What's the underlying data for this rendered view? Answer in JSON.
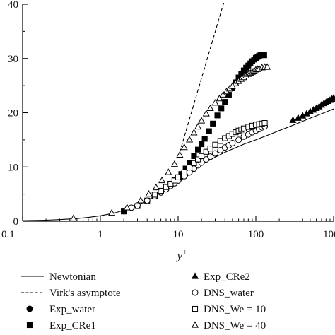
{
  "chart_data": {
    "type": "scatter",
    "xscale": "log",
    "xlabel": "y",
    "xlabel_sup": "+",
    "ylabel": "",
    "xlim": [
      0.1,
      1000
    ],
    "ylim": [
      0,
      40
    ],
    "x_ticks": [
      0.1,
      1,
      10,
      100,
      1000
    ],
    "x_tick_labels": [
      "0.1",
      "1",
      "10",
      "100",
      "1000"
    ],
    "y_ticks": [
      0,
      10,
      20,
      30,
      40
    ],
    "y_tick_labels": [
      "0",
      "10",
      "20",
      "30",
      "40"
    ],
    "grid": false,
    "legend_position": "bottom",
    "series": [
      {
        "name": "Newtonian",
        "style": "solid-line",
        "x": [
          0.1,
          0.2,
          0.3,
          0.5,
          0.7,
          1,
          1.5,
          2,
          3,
          4,
          5,
          6,
          7,
          8,
          10,
          12,
          15,
          20,
          25,
          30,
          40,
          50,
          70,
          100,
          150,
          200,
          300,
          500,
          700,
          1000
        ],
        "y": [
          0.1,
          0.2,
          0.3,
          0.5,
          0.7,
          1,
          1.5,
          2,
          2.9,
          3.8,
          4.6,
          5.3,
          6.0,
          6.6,
          7.6,
          8.4,
          9.3,
          10.4,
          11.2,
          11.8,
          12.7,
          13.3,
          14.2,
          15.0,
          16.0,
          16.7,
          17.7,
          19.0,
          19.8,
          20.7
        ]
      },
      {
        "name": "Virk's asymptote",
        "style": "dashed-line",
        "x": [
          10,
          40
        ],
        "y": [
          11.7,
          41.0
        ]
      },
      {
        "name": "Exp_water",
        "marker": "filled-circle",
        "x": [
          10.5,
          12.5,
          15.5
        ],
        "y": [
          7.9,
          8.7,
          9.7
        ]
      },
      {
        "name": "Exp_CRe1",
        "marker": "filled-square",
        "x": [
          2,
          3,
          4,
          5,
          6,
          7,
          8,
          9,
          11,
          12.5,
          14,
          16,
          18,
          20,
          22,
          25,
          28,
          32,
          36,
          40,
          45,
          50,
          55,
          60,
          65,
          70,
          75,
          80,
          85,
          90,
          95,
          100,
          105,
          110,
          115,
          120,
          125,
          128
        ],
        "y": [
          1.8,
          2.8,
          3.8,
          4.7,
          5.6,
          6.2,
          6.9,
          7.6,
          8.7,
          9.7,
          10.8,
          12.0,
          13.2,
          14.2,
          15.2,
          16.6,
          18.0,
          19.5,
          20.8,
          22.0,
          23.3,
          24.5,
          25.6,
          26.5,
          27.2,
          27.8,
          28.3,
          28.7,
          29.1,
          29.5,
          29.8,
          30.1,
          30.3,
          30.5,
          30.6,
          30.7,
          30.7,
          30.6
        ]
      },
      {
        "name": "Exp_CRe2",
        "marker": "filled-triangle",
        "x": [
          300,
          350,
          400,
          450,
          500,
          550,
          600,
          650,
          700,
          750,
          800,
          850,
          900,
          950,
          1000
        ],
        "y": [
          18.6,
          19.0,
          19.4,
          19.8,
          20.2,
          20.5,
          20.8,
          21.1,
          21.4,
          21.7,
          21.9,
          22.1,
          22.3,
          22.5,
          22.7
        ]
      },
      {
        "name": "DNS_water",
        "marker": "open-circle",
        "x": [
          2.5,
          3,
          4,
          5,
          6,
          7,
          8,
          9,
          10,
          12,
          14,
          16,
          18,
          20,
          23,
          26,
          30,
          35,
          40,
          45,
          50,
          60,
          70,
          80,
          90,
          100,
          110,
          120,
          130
        ],
        "y": [
          2.5,
          2.9,
          3.8,
          4.6,
          5.3,
          5.9,
          6.5,
          7.0,
          7.5,
          8.3,
          9.0,
          9.7,
          10.3,
          10.8,
          11.4,
          11.9,
          12.5,
          13.1,
          13.6,
          14.0,
          14.4,
          15.0,
          15.6,
          16.0,
          16.4,
          16.7,
          17.0,
          17.3,
          17.5
        ]
      },
      {
        "name": "DNS_We = 10",
        "marker": "open-square",
        "x": [
          5,
          6,
          7,
          8,
          9,
          10,
          12,
          14,
          16,
          18,
          20,
          23,
          26,
          30,
          35,
          40,
          45,
          50,
          55,
          60,
          65,
          70,
          80,
          90,
          100,
          110,
          120,
          130
        ],
        "y": [
          4.9,
          5.6,
          6.3,
          6.9,
          7.5,
          8.1,
          9.0,
          9.9,
          10.7,
          11.4,
          12.0,
          12.8,
          13.4,
          14.1,
          14.8,
          15.3,
          15.7,
          16.1,
          16.4,
          16.7,
          16.9,
          17.1,
          17.4,
          17.6,
          17.8,
          17.9,
          18.0,
          18.1
        ]
      },
      {
        "name": "DNS_We = 40",
        "marker": "open-triangle",
        "x": [
          0.45,
          1.4,
          2.2,
          3.3,
          4.2,
          5.2,
          6.2,
          7.5,
          9,
          10.5,
          12,
          14,
          16,
          18,
          20,
          23,
          26,
          30,
          34,
          38,
          42,
          46,
          50,
          55,
          60,
          65,
          70,
          75,
          80,
          85,
          90,
          95,
          100,
          105,
          110,
          120,
          130,
          140
        ],
        "y": [
          0.5,
          1.5,
          2.5,
          3.8,
          5.0,
          6.2,
          7.5,
          9.0,
          10.5,
          12.2,
          13.6,
          15.0,
          16.3,
          17.4,
          18.5,
          19.8,
          20.8,
          21.8,
          22.6,
          23.3,
          23.9,
          24.4,
          24.9,
          25.4,
          25.8,
          26.2,
          26.5,
          26.8,
          27.1,
          27.3,
          27.5,
          27.7,
          27.9,
          28.0,
          28.1,
          28.3,
          28.4,
          28.4
        ]
      }
    ]
  }
}
